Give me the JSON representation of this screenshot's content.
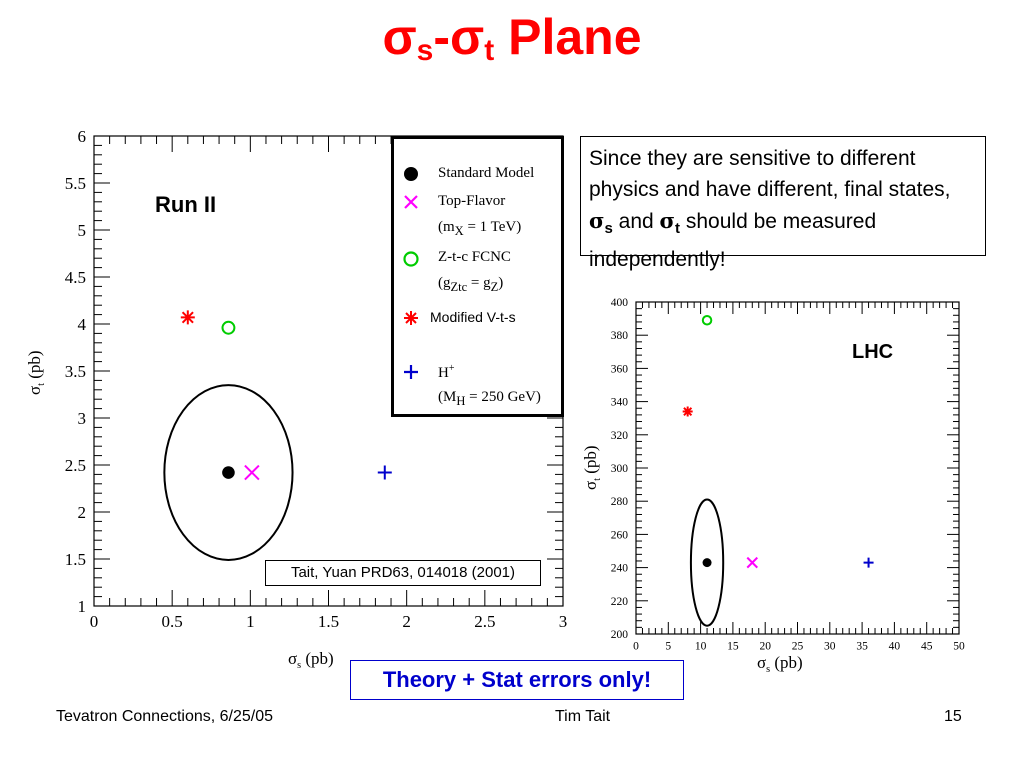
{
  "slide": {
    "title": {
      "sym1": "σ",
      "sub1": "s",
      "dash": "-",
      "sym2": "σ",
      "sub2": "t",
      "rest": " Plane"
    },
    "footer": {
      "left": "Tevatron Connections, 6/25/05",
      "center": "Tim Tait",
      "right": "15"
    },
    "note": {
      "part1": "Since they are sensitive to different physics and have different, final states, ",
      "sym_s": "σ",
      "sub_s": "s",
      "and": " and ",
      "sym_t": "σ",
      "sub_t": "t",
      "part2": " should be measured independently!"
    },
    "citation": "Tait, Yuan PRD63, 014018 (2001)",
    "errors_note": "Theory + Stat errors only!",
    "legend": {
      "sm": "Standard Model",
      "tf": "Top-Flavor",
      "tf_param": {
        "pre": "(m",
        "sub": "X",
        "post": " = 1 TeV)"
      },
      "fcnc": "Z-t-c FCNC",
      "fcnc_param": {
        "pre": "(g",
        "sub1": "Ztc",
        "mid": " = g",
        "sub2": "Z",
        "post": ")"
      },
      "vts": "Modified  V-t-s",
      "h": "H",
      "h_sup": "+",
      "h_param": {
        "pre": "(M",
        "sub": "H",
        "post": " = 250 GeV)"
      }
    },
    "colors": {
      "title": "#ff0000",
      "sm": "#000000",
      "top_flavor": "#ff00ff",
      "fcnc": "#00cc00",
      "vts": "#ff0000",
      "hplus": "#0000cc",
      "errors_note": "#0000cc"
    }
  },
  "chart_data": [
    {
      "type": "scatter",
      "annotation": "Run II",
      "xlabel": {
        "sym": "σ",
        "sub": "s",
        "unit": "(pb)"
      },
      "ylabel": {
        "sym": "σ",
        "sub": "t",
        "unit": "(pb)"
      },
      "xlim": [
        0,
        3
      ],
      "ylim": [
        1,
        6
      ],
      "xticks": [
        "0",
        "0.5",
        "1",
        "1.5",
        "2",
        "2.5",
        "3"
      ],
      "yticks": [
        "1",
        "1.5",
        "2",
        "2.5",
        "3",
        "3.5",
        "4",
        "4.5",
        "5",
        "5.5",
        "6"
      ],
      "series": [
        {
          "name": "Standard Model",
          "marker": "dot",
          "x": [
            0.86
          ],
          "y": [
            2.42
          ]
        },
        {
          "name": "Top-Flavor",
          "marker": "x",
          "x": [
            1.01
          ],
          "y": [
            2.42
          ]
        },
        {
          "name": "Z-t-c FCNC",
          "marker": "circle",
          "x": [
            0.86
          ],
          "y": [
            3.96
          ]
        },
        {
          "name": "Modified V-t-s",
          "marker": "star",
          "x": [
            0.6
          ],
          "y": [
            4.07
          ]
        },
        {
          "name": "H+",
          "marker": "plus",
          "x": [
            1.86
          ],
          "y": [
            2.42
          ]
        }
      ],
      "error_ellipse": {
        "cx": 0.86,
        "cy": 2.42,
        "rx": 0.41,
        "ry": 0.93
      }
    },
    {
      "type": "scatter",
      "annotation": "LHC",
      "xlabel": {
        "sym": "σ",
        "sub": "s",
        "unit": "(pb)"
      },
      "ylabel": {
        "sym": "σ",
        "sub": "t",
        "unit": "(pb)"
      },
      "xlim": [
        0,
        50
      ],
      "ylim": [
        200,
        400
      ],
      "xticks": [
        "0",
        "5",
        "10",
        "15",
        "20",
        "25",
        "30",
        "35",
        "40",
        "45",
        "50"
      ],
      "yticks": [
        "200",
        "220",
        "240",
        "260",
        "280",
        "300",
        "320",
        "340",
        "360",
        "380",
        "400"
      ],
      "series": [
        {
          "name": "Standard Model",
          "marker": "dot",
          "x": [
            11
          ],
          "y": [
            243
          ]
        },
        {
          "name": "Top-Flavor",
          "marker": "x",
          "x": [
            18
          ],
          "y": [
            243
          ]
        },
        {
          "name": "Z-t-c FCNC",
          "marker": "circle",
          "x": [
            11
          ],
          "y": [
            389
          ]
        },
        {
          "name": "Modified V-t-s",
          "marker": "star",
          "x": [
            8
          ],
          "y": [
            334
          ]
        },
        {
          "name": "H+",
          "marker": "plus",
          "x": [
            36
          ],
          "y": [
            243
          ]
        }
      ],
      "error_ellipse": {
        "cx": 11,
        "cy": 243,
        "rx": 2.5,
        "ry": 38
      }
    }
  ]
}
